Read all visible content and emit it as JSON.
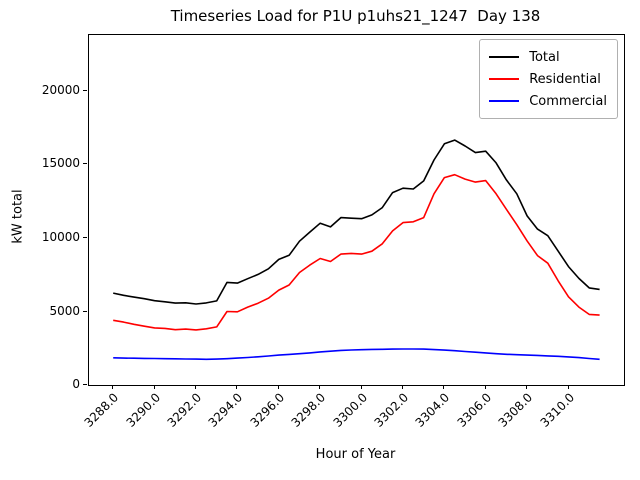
{
  "chart_data": {
    "type": "line",
    "title": "Timeseries Load for P1U p1uhs21_1247  Day 138",
    "xlabel": "Hour of Year",
    "ylabel": "kW total",
    "grid": false,
    "legend_position": "upper right",
    "xlim": [
      3286.83,
      3312.68
    ],
    "ylim": [
      0,
      23800
    ],
    "x_ticks": [
      3288,
      3290,
      3292,
      3294,
      3296,
      3298,
      3300,
      3302,
      3304,
      3306,
      3308,
      3310
    ],
    "x_tick_labels": [
      "3288.0",
      "3290.0",
      "3292.0",
      "3294.0",
      "3296.0",
      "3298.0",
      "3300.0",
      "3302.0",
      "3304.0",
      "3306.0",
      "3308.0",
      "3310.0"
    ],
    "y_ticks": [
      0,
      5000,
      10000,
      15000,
      20000
    ],
    "y_tick_labels": [
      "0",
      "5000",
      "10000",
      "15000",
      "20000"
    ],
    "x": [
      3288.0,
      3288.5,
      3289.0,
      3289.5,
      3290.0,
      3290.5,
      3291.0,
      3291.5,
      3292.0,
      3292.5,
      3293.0,
      3293.5,
      3294.0,
      3294.5,
      3295.0,
      3295.5,
      3296.0,
      3296.5,
      3297.0,
      3297.5,
      3298.0,
      3298.5,
      3299.0,
      3299.5,
      3300.0,
      3300.5,
      3301.0,
      3301.5,
      3302.0,
      3302.5,
      3303.0,
      3303.5,
      3304.0,
      3304.5,
      3305.0,
      3305.5,
      3306.0,
      3306.5,
      3307.0,
      3307.5,
      3308.0,
      3308.5,
      3309.0,
      3309.5,
      3310.0,
      3310.5,
      3311.0,
      3311.5
    ],
    "series": [
      {
        "name": "Total",
        "color": "#000000",
        "values": [
          6250,
          6100,
          5980,
          5870,
          5730,
          5660,
          5570,
          5590,
          5510,
          5580,
          5720,
          6980,
          6930,
          7230,
          7520,
          7900,
          8540,
          8820,
          9780,
          10400,
          11000,
          10750,
          11380,
          11340,
          11310,
          11570,
          12060,
          13080,
          13380,
          13330,
          13880,
          15300,
          16400,
          16650,
          16250,
          15800,
          15900,
          15100,
          13950,
          13000,
          11500,
          10600,
          10150,
          9100,
          8050,
          7250,
          6600,
          6500
        ]
      },
      {
        "name": "Residential",
        "color": "#ff0000",
        "values": [
          4400,
          4280,
          4130,
          4000,
          3880,
          3850,
          3760,
          3800,
          3750,
          3820,
          3950,
          5000,
          4980,
          5300,
          5560,
          5900,
          6450,
          6800,
          7650,
          8150,
          8600,
          8400,
          8900,
          8950,
          8900,
          9100,
          9600,
          10480,
          11040,
          11100,
          11380,
          13000,
          14100,
          14300,
          14000,
          13800,
          13900,
          13000,
          11950,
          10900,
          9800,
          8800,
          8280,
          7080,
          6000,
          5300,
          4800,
          4750
        ]
      },
      {
        "name": "Commercial",
        "color": "#0000ff",
        "values": [
          1850,
          1830,
          1820,
          1810,
          1800,
          1790,
          1780,
          1770,
          1760,
          1750,
          1760,
          1790,
          1830,
          1870,
          1920,
          1970,
          2030,
          2080,
          2130,
          2180,
          2250,
          2300,
          2350,
          2380,
          2400,
          2420,
          2430,
          2440,
          2450,
          2450,
          2440,
          2410,
          2370,
          2330,
          2280,
          2230,
          2180,
          2130,
          2090,
          2060,
          2030,
          2010,
          1980,
          1950,
          1910,
          1860,
          1800,
          1750
        ]
      }
    ]
  }
}
